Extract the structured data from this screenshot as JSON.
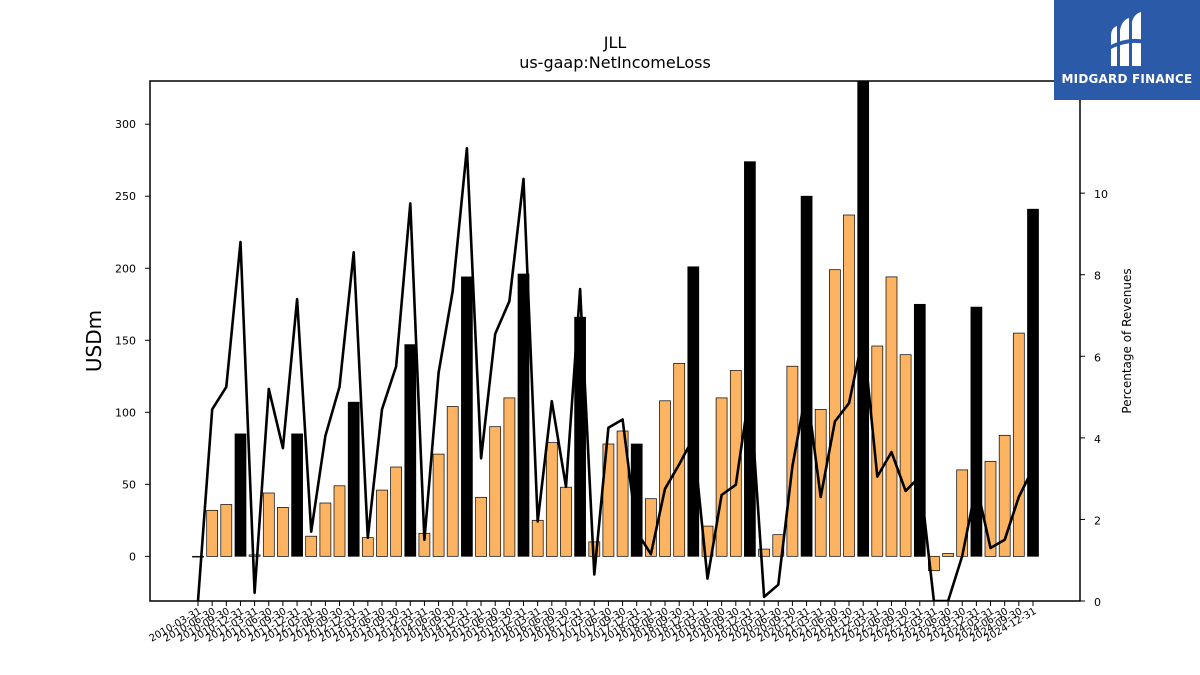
{
  "chart_data": {
    "type": "bar",
    "title": "JLL",
    "subtitle": "us-gaap:NetIncomeLoss",
    "ylabel": "USDm",
    "y2label": "Percentage of Revenues",
    "ylim": [
      -31,
      330
    ],
    "y2lim": [
      0,
      12.75
    ],
    "yticks": [
      0,
      50,
      100,
      150,
      200,
      250,
      300
    ],
    "y2ticks": [
      0,
      2,
      4,
      6,
      8,
      10
    ],
    "colors": {
      "quarter_bar": "#fdb462",
      "annual_bar": "#000000",
      "line": "#000000"
    },
    "categories": [
      "2010-03-31",
      "2010-06-30",
      "2010-09-30",
      "2010-12-31",
      "2011-03-31",
      "2011-06-30",
      "2011-09-30",
      "2011-12-31",
      "2012-03-31",
      "2012-06-30",
      "2012-09-30",
      "2012-12-31",
      "2013-03-31",
      "2013-06-30",
      "2013-09-30",
      "2013-12-31",
      "2014-03-31",
      "2014-06-30",
      "2014-09-30",
      "2014-12-31",
      "2015-03-31",
      "2015-06-30",
      "2015-09-30",
      "2015-12-31",
      "2016-03-31",
      "2016-06-30",
      "2016-09-30",
      "2016-12-31",
      "2017-03-31",
      "2017-06-30",
      "2017-09-30",
      "2017-12-31",
      "2018-03-31",
      "2018-06-30",
      "2018-09-30",
      "2018-12-31",
      "2019-03-31",
      "2019-06-30",
      "2019-09-30",
      "2019-12-31",
      "2020-03-31",
      "2020-06-30",
      "2020-09-30",
      "2020-12-31",
      "2021-03-31",
      "2021-06-30",
      "2021-09-30",
      "2021-12-31",
      "2022-03-31",
      "2022-06-30",
      "2022-09-30",
      "2022-12-31",
      "2023-03-31",
      "2023-06-30",
      "2023-09-30",
      "2023-12-31",
      "2024-03-31",
      "2024-06-30",
      "2024-09-30",
      "2024-12-31"
    ],
    "series": [
      {
        "kind": "bar",
        "values": [
          0,
          32,
          36,
          85,
          1,
          44,
          34,
          85,
          14,
          37,
          49,
          107,
          13,
          46,
          62,
          147,
          16,
          71,
          104,
          194,
          41,
          90,
          110,
          196,
          25,
          79,
          48,
          166,
          10,
          78,
          87,
          78,
          40,
          108,
          134,
          201,
          21,
          110,
          129,
          274,
          5,
          15,
          132,
          250,
          102,
          199,
          237,
          330,
          146,
          194,
          140,
          175,
          -10,
          2,
          60,
          173,
          66,
          84,
          155,
          241
        ],
        "annual": [
          false,
          false,
          false,
          true,
          false,
          false,
          false,
          true,
          false,
          false,
          false,
          true,
          false,
          false,
          false,
          true,
          false,
          false,
          false,
          true,
          false,
          false,
          false,
          true,
          false,
          false,
          false,
          true,
          false,
          false,
          false,
          true,
          false,
          false,
          false,
          true,
          false,
          false,
          false,
          true,
          false,
          false,
          false,
          true,
          false,
          false,
          false,
          true,
          false,
          false,
          false,
          true,
          false,
          false,
          false,
          true,
          false,
          false,
          false,
          true
        ]
      },
      {
        "kind": "line",
        "axis": "right",
        "values": [
          0,
          4.7,
          5.25,
          8.8,
          0.2,
          5.2,
          3.75,
          7.4,
          1.7,
          4.05,
          5.25,
          8.55,
          1.55,
          4.7,
          5.75,
          9.75,
          1.5,
          5.6,
          7.6,
          11.1,
          3.5,
          6.55,
          7.35,
          10.35,
          1.95,
          4.9,
          2.8,
          7.65,
          0.65,
          4.25,
          4.45,
          1.7,
          1.15,
          2.75,
          3.35,
          4.0,
          0.55,
          2.6,
          2.85,
          5.2,
          0.1,
          0.4,
          3.3,
          5.2,
          2.55,
          4.4,
          4.85,
          6.5,
          3.05,
          3.65,
          2.7,
          3.05,
          0,
          0,
          1.1,
          2.85,
          1.3,
          1.5,
          2.55,
          3.25
        ]
      }
    ]
  },
  "logo": {
    "name": "MIDGARD FINANCE"
  }
}
